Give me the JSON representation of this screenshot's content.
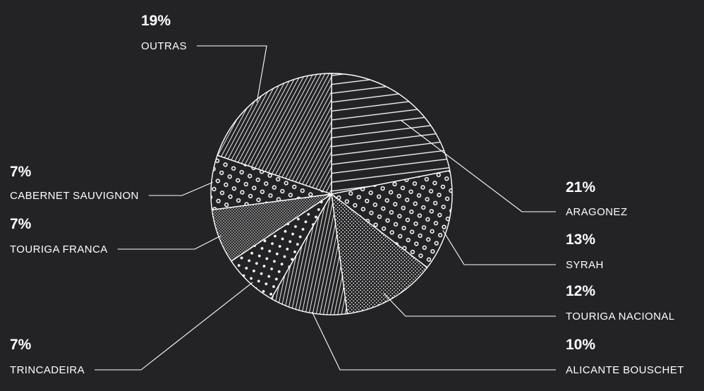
{
  "chart_data": {
    "type": "pie",
    "start": "12 o'clock, clockwise",
    "colors": {
      "background": "#232325",
      "ink": "#ffffff"
    },
    "slices": [
      {
        "label": "ARAGONEZ",
        "value": 21,
        "display": "21%",
        "pattern": "horizontal-lines"
      },
      {
        "label": "SYRAH",
        "value": 13,
        "display": "13%",
        "pattern": "rings"
      },
      {
        "label": "TOURIGA NACIONAL",
        "value": 12,
        "display": "12%",
        "pattern": "fine-dots"
      },
      {
        "label": "ALICANTE BOUSCHET",
        "value": 10,
        "display": "10%",
        "pattern": "vertical-lines"
      },
      {
        "label": "TRINCADEIRA",
        "value": 7,
        "display": "7%",
        "pattern": "large-dots"
      },
      {
        "label": "TOURIGA FRANCA",
        "value": 7,
        "display": "7%",
        "pattern": "dense-dots"
      },
      {
        "label": "CABERNET SAUVIGNON",
        "value": 7,
        "display": "7%",
        "pattern": "rings"
      },
      {
        "label": "OUTRAS",
        "value": 19,
        "display": "19%",
        "pattern": "diagonal-lines"
      }
    ]
  }
}
